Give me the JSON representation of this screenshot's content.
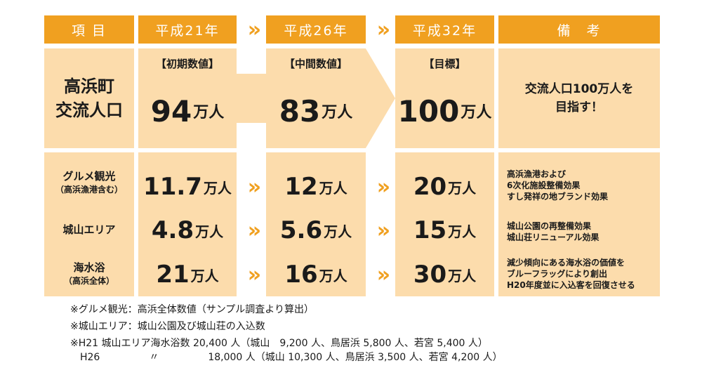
{
  "header": {
    "item": "項 目",
    "h21": "平成21年",
    "h26": "平成26年",
    "h32": "平成32年",
    "remarks": "備　考",
    "arrow": "»"
  },
  "top_row": {
    "label_line1": "高浜町",
    "label_line2": "交流人口",
    "initial_tag": "【初期数値】",
    "middle_tag": "【中間数値】",
    "target_tag": "【目標】",
    "h21_value": "94",
    "h26_value": "83",
    "h32_value": "100",
    "unit": "万人",
    "remark_line1": "交流人口100万人を",
    "remark_line2": "目指す！"
  },
  "rows": [
    {
      "label": "グルメ観光",
      "sublabel": "（高浜漁港含む）",
      "h21": "11.7",
      "h26": "12",
      "h32": "20",
      "remark": "高浜漁港および\n6次化施設整備効果\nすし発祥の地ブランド効果"
    },
    {
      "label": "城山エリア",
      "sublabel": "",
      "h21": "4.8",
      "h26": "5.6",
      "h32": "15",
      "remark": "城山公園の再整備効果\n城山荘リニューアル効果"
    },
    {
      "label": "海水浴",
      "sublabel": "（高浜全体）",
      "h21": "21",
      "h26": "16",
      "h32": "30",
      "remark": "減少傾向にある海水浴の価値を\nブルーフラッグにより創出\nH20年度並に入込客を回復させる"
    }
  ],
  "notes": [
    "※グルメ観光：高浜全体数値（サンプル調査より算出）",
    "※城山エリア：城山公園及び城山荘の入込数",
    "※H21 城山エリア海水浴数 20,400 人（城山　9,200 人、鳥居浜 5,800 人、若宮 5,400 人）",
    "　H26　　　　　〃　　　　　18,000 人（城山 10,300 人、鳥居浜 3,500 人、若宮 4,200 人）"
  ]
}
